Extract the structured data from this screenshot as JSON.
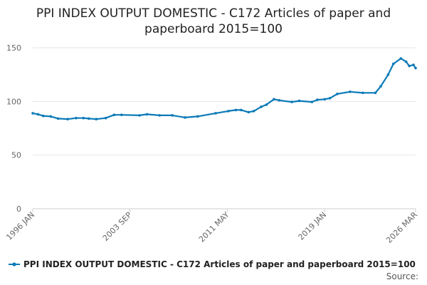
{
  "chart_data": {
    "type": "line",
    "title_lines": [
      "PPI INDEX OUTPUT DOMESTIC - C172 Articles of paper and",
      "paperboard 2015=100"
    ],
    "xlabel": "",
    "ylabel": "",
    "ylim": [
      0,
      150
    ],
    "y_ticks": [
      0,
      50,
      100,
      150
    ],
    "x_range": [
      "1996-01",
      "2026-03"
    ],
    "x_tick_labels": [
      {
        "label": "1996 JAN",
        "date": "1996-01"
      },
      {
        "label": "2003 SEP",
        "date": "2003-09"
      },
      {
        "label": "2011 MAY",
        "date": "2011-05"
      },
      {
        "label": "2019 JAN",
        "date": "2019-01"
      },
      {
        "label": "2026 MAR",
        "date": "2026-03"
      }
    ],
    "grid": true,
    "legend_position": "bottom",
    "source_label": "Source:",
    "series": [
      {
        "name": "PPI INDEX OUTPUT DOMESTIC - C172 Articles of paper and paperboard 2015=100",
        "color": "#0b7ab8",
        "points": [
          [
            "1996-01",
            89
          ],
          [
            "1996-06",
            88
          ],
          [
            "1996-11",
            86.5
          ],
          [
            "1997-06",
            86
          ],
          [
            "1998-01",
            84
          ],
          [
            "1998-10",
            83.5
          ],
          [
            "1999-06",
            84.5
          ],
          [
            "2000-01",
            84.5
          ],
          [
            "2000-06",
            84
          ],
          [
            "2001-01",
            83.5
          ],
          [
            "2001-10",
            84.5
          ],
          [
            "2002-06",
            87.5
          ],
          [
            "2003-01",
            87.5
          ],
          [
            "2004-06",
            87
          ],
          [
            "2005-01",
            88
          ],
          [
            "2006-01",
            87
          ],
          [
            "2007-01",
            87
          ],
          [
            "2008-01",
            85
          ],
          [
            "2009-01",
            86
          ],
          [
            "2010-06",
            89
          ],
          [
            "2011-06",
            91
          ],
          [
            "2012-01",
            92
          ],
          [
            "2012-06",
            92
          ],
          [
            "2013-01",
            90
          ],
          [
            "2013-06",
            91
          ],
          [
            "2014-01",
            95
          ],
          [
            "2014-06",
            97
          ],
          [
            "2015-01",
            102
          ],
          [
            "2015-06",
            101
          ],
          [
            "2016-06",
            99.5
          ],
          [
            "2017-01",
            100.5
          ],
          [
            "2018-01",
            99.5
          ],
          [
            "2018-06",
            101.5
          ],
          [
            "2019-01",
            102
          ],
          [
            "2019-06",
            103
          ],
          [
            "2020-01",
            107
          ],
          [
            "2021-01",
            109
          ],
          [
            "2022-01",
            108
          ],
          [
            "2023-01",
            108
          ],
          [
            "2023-06",
            114
          ],
          [
            "2024-01",
            125
          ],
          [
            "2024-06",
            135
          ],
          [
            "2025-01",
            140
          ],
          [
            "2025-06",
            137
          ],
          [
            "2025-09",
            133
          ],
          [
            "2026-01",
            134
          ],
          [
            "2026-03",
            131
          ]
        ]
      }
    ]
  }
}
